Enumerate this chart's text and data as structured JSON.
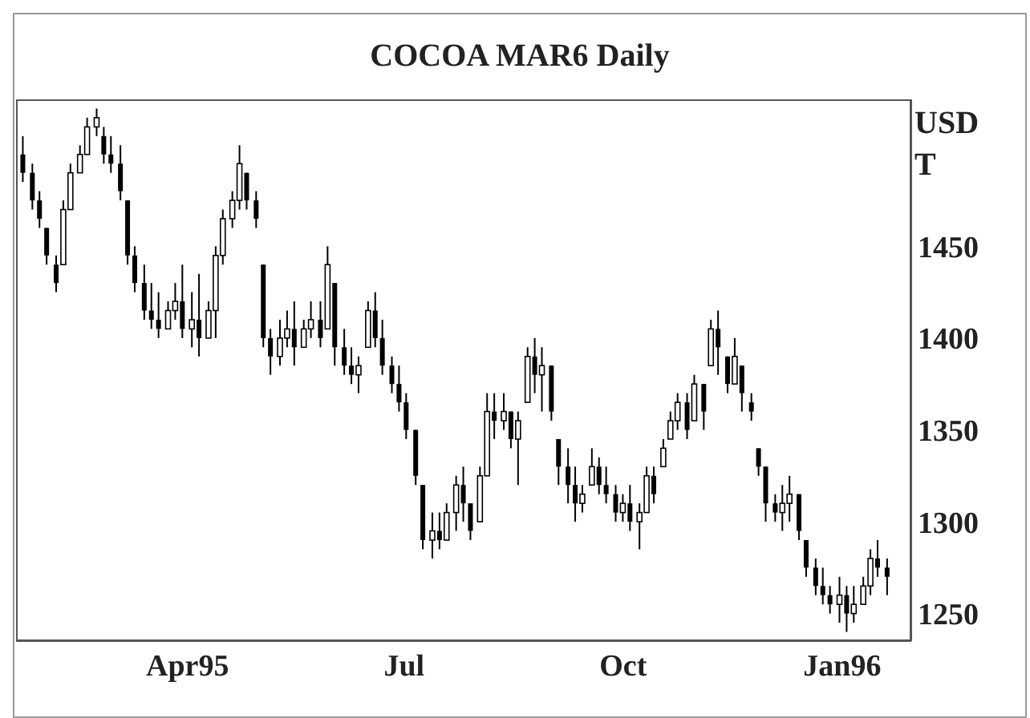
{
  "chart_data": {
    "type": "candlestick",
    "title": "COCOA MAR6 Daily",
    "ylabel": "USD T",
    "x": [
      "1995-01-22",
      "1995-01-26",
      "1995-01-29",
      "1995-02-01",
      "1995-02-05",
      "1995-02-08",
      "1995-02-11",
      "1995-02-15",
      "1995-02-18",
      "1995-02-22",
      "1995-02-25",
      "1995-02-28",
      "1995-03-04",
      "1995-03-07",
      "1995-03-10",
      "1995-03-14",
      "1995-03-17",
      "1995-03-20",
      "1995-03-24",
      "1995-03-27",
      "1995-03-30",
      "1995-04-03",
      "1995-04-06",
      "1995-04-10",
      "1995-04-13",
      "1995-04-16",
      "1995-04-20",
      "1995-04-23",
      "1995-04-26",
      "1995-04-30",
      "1995-05-03",
      "1995-05-06",
      "1995-05-10",
      "1995-05-13",
      "1995-05-16",
      "1995-05-20",
      "1995-05-23",
      "1995-05-27",
      "1995-05-30",
      "1995-06-02",
      "1995-06-06",
      "1995-06-09",
      "1995-06-12",
      "1995-06-16",
      "1995-06-19",
      "1995-06-22",
      "1995-06-26",
      "1995-06-29",
      "1995-07-02",
      "1995-07-06",
      "1995-07-09",
      "1995-07-13",
      "1995-07-16",
      "1995-07-19",
      "1995-07-23",
      "1995-07-26",
      "1995-07-29",
      "1995-08-02",
      "1995-08-05",
      "1995-08-08",
      "1995-08-12",
      "1995-08-15",
      "1995-08-18",
      "1995-08-22",
      "1995-08-25",
      "1995-08-28",
      "1995-09-01",
      "1995-09-04",
      "1995-09-08",
      "1995-09-11",
      "1995-09-14",
      "1995-09-18",
      "1995-09-21",
      "1995-09-24",
      "1995-09-28",
      "1995-10-01",
      "1995-10-04",
      "1995-10-08",
      "1995-10-11",
      "1995-10-14",
      "1995-10-18",
      "1995-10-21",
      "1995-10-24",
      "1995-10-28",
      "1995-10-31",
      "1995-11-04",
      "1995-11-07",
      "1995-11-10",
      "1995-11-14",
      "1995-11-17",
      "1995-11-20",
      "1995-11-24",
      "1995-11-27",
      "1995-11-30",
      "1995-12-04",
      "1995-12-07",
      "1995-12-10",
      "1995-12-14",
      "1995-12-17",
      "1995-12-21",
      "1995-12-24",
      "1995-12-27",
      "1995-12-31",
      "1996-01-03",
      "1996-01-06",
      "1996-01-10",
      "1996-01-13",
      "1996-01-16",
      "1996-01-20"
    ],
    "ohlc": [
      [
        1500,
        1510,
        1485,
        1490
      ],
      [
        1490,
        1495,
        1470,
        1475
      ],
      [
        1475,
        1480,
        1460,
        1465
      ],
      [
        1460,
        1460,
        1440,
        1445
      ],
      [
        1440,
        1445,
        1425,
        1430
      ],
      [
        1440,
        1475,
        1440,
        1470
      ],
      [
        1470,
        1495,
        1470,
        1490
      ],
      [
        1490,
        1505,
        1490,
        1500
      ],
      [
        1500,
        1520,
        1500,
        1515
      ],
      [
        1515,
        1525,
        1510,
        1520
      ],
      [
        1510,
        1515,
        1495,
        1500
      ],
      [
        1500,
        1510,
        1490,
        1495
      ],
      [
        1495,
        1505,
        1475,
        1480
      ],
      [
        1475,
        1475,
        1440,
        1445
      ],
      [
        1445,
        1450,
        1425,
        1430
      ],
      [
        1430,
        1440,
        1410,
        1415
      ],
      [
        1415,
        1430,
        1405,
        1410
      ],
      [
        1410,
        1425,
        1400,
        1405
      ],
      [
        1405,
        1420,
        1405,
        1415
      ],
      [
        1415,
        1430,
        1410,
        1420
      ],
      [
        1420,
        1440,
        1400,
        1405
      ],
      [
        1405,
        1425,
        1395,
        1410
      ],
      [
        1410,
        1435,
        1390,
        1400
      ],
      [
        1400,
        1420,
        1400,
        1415
      ],
      [
        1415,
        1450,
        1400,
        1445
      ],
      [
        1445,
        1470,
        1440,
        1465
      ],
      [
        1465,
        1480,
        1460,
        1475
      ],
      [
        1475,
        1505,
        1470,
        1495
      ],
      [
        1490,
        1490,
        1470,
        1475
      ],
      [
        1475,
        1480,
        1460,
        1465
      ],
      [
        1440,
        1440,
        1395,
        1400
      ],
      [
        1400,
        1405,
        1380,
        1390
      ],
      [
        1390,
        1410,
        1385,
        1400
      ],
      [
        1400,
        1415,
        1395,
        1405
      ],
      [
        1405,
        1420,
        1385,
        1395
      ],
      [
        1395,
        1410,
        1395,
        1405
      ],
      [
        1405,
        1420,
        1400,
        1410
      ],
      [
        1410,
        1420,
        1395,
        1400
      ],
      [
        1405,
        1450,
        1405,
        1440
      ],
      [
        1430,
        1430,
        1385,
        1395
      ],
      [
        1395,
        1405,
        1380,
        1385
      ],
      [
        1385,
        1395,
        1375,
        1380
      ],
      [
        1380,
        1390,
        1370,
        1385
      ],
      [
        1395,
        1420,
        1395,
        1415
      ],
      [
        1415,
        1425,
        1395,
        1400
      ],
      [
        1400,
        1410,
        1380,
        1385
      ],
      [
        1385,
        1390,
        1370,
        1375
      ],
      [
        1375,
        1385,
        1360,
        1365
      ],
      [
        1365,
        1370,
        1345,
        1350
      ],
      [
        1350,
        1350,
        1320,
        1325
      ],
      [
        1320,
        1320,
        1285,
        1290
      ],
      [
        1290,
        1305,
        1280,
        1295
      ],
      [
        1295,
        1305,
        1285,
        1290
      ],
      [
        1290,
        1310,
        1290,
        1305
      ],
      [
        1305,
        1325,
        1295,
        1320
      ],
      [
        1320,
        1330,
        1300,
        1310
      ],
      [
        1310,
        1310,
        1290,
        1295
      ],
      [
        1300,
        1330,
        1300,
        1325
      ],
      [
        1325,
        1370,
        1325,
        1360
      ],
      [
        1360,
        1370,
        1345,
        1355
      ],
      [
        1355,
        1370,
        1350,
        1360
      ],
      [
        1360,
        1360,
        1340,
        1345
      ],
      [
        1345,
        1360,
        1320,
        1355
      ],
      [
        1365,
        1395,
        1365,
        1390
      ],
      [
        1390,
        1400,
        1370,
        1380
      ],
      [
        1380,
        1395,
        1360,
        1385
      ],
      [
        1385,
        1385,
        1355,
        1360
      ],
      [
        1345,
        1345,
        1320,
        1330
      ],
      [
        1330,
        1340,
        1310,
        1320
      ],
      [
        1320,
        1330,
        1300,
        1310
      ],
      [
        1310,
        1320,
        1305,
        1315
      ],
      [
        1320,
        1340,
        1320,
        1330
      ],
      [
        1330,
        1335,
        1315,
        1320
      ],
      [
        1320,
        1330,
        1310,
        1315
      ],
      [
        1315,
        1320,
        1300,
        1305
      ],
      [
        1305,
        1315,
        1300,
        1310
      ],
      [
        1310,
        1320,
        1295,
        1300
      ],
      [
        1300,
        1310,
        1285,
        1305
      ],
      [
        1305,
        1330,
        1305,
        1325
      ],
      [
        1325,
        1330,
        1310,
        1315
      ],
      [
        1330,
        1345,
        1330,
        1340
      ],
      [
        1345,
        1360,
        1345,
        1355
      ],
      [
        1355,
        1370,
        1350,
        1365
      ],
      [
        1365,
        1370,
        1345,
        1350
      ],
      [
        1355,
        1380,
        1355,
        1375
      ],
      [
        1375,
        1375,
        1350,
        1360
      ],
      [
        1385,
        1410,
        1385,
        1405
      ],
      [
        1405,
        1415,
        1380,
        1395
      ],
      [
        1390,
        1390,
        1370,
        1375
      ],
      [
        1375,
        1400,
        1375,
        1390
      ],
      [
        1385,
        1385,
        1360,
        1370
      ],
      [
        1365,
        1370,
        1355,
        1360
      ],
      [
        1340,
        1340,
        1325,
        1330
      ],
      [
        1330,
        1330,
        1300,
        1310
      ],
      [
        1310,
        1315,
        1300,
        1305
      ],
      [
        1305,
        1320,
        1295,
        1310
      ],
      [
        1310,
        1325,
        1300,
        1315
      ],
      [
        1315,
        1315,
        1290,
        1295
      ],
      [
        1290,
        1290,
        1270,
        1275
      ],
      [
        1275,
        1280,
        1260,
        1265
      ],
      [
        1265,
        1275,
        1255,
        1260
      ],
      [
        1260,
        1265,
        1250,
        1255
      ],
      [
        1255,
        1270,
        1245,
        1260
      ],
      [
        1260,
        1265,
        1240,
        1250
      ],
      [
        1250,
        1265,
        1245,
        1255
      ],
      [
        1255,
        1270,
        1255,
        1265
      ],
      [
        1265,
        1285,
        1260,
        1280
      ],
      [
        1280,
        1290,
        1270,
        1275
      ],
      [
        1275,
        1280,
        1260,
        1270
      ]
    ],
    "color": "#000000",
    "xlim": [
      "1995-01-19",
      "1996-01-30"
    ],
    "xticks": [
      {
        "value": "1995-04-01",
        "label": "Apr95"
      },
      {
        "value": "1995-07-01",
        "label": "Jul"
      },
      {
        "value": "1995-10-01",
        "label": "Oct"
      },
      {
        "value": "1996-01-01",
        "label": "Jan96"
      }
    ],
    "ylim": [
      1235,
      1530
    ],
    "yticks": [
      1250,
      1300,
      1350,
      1400,
      1450
    ],
    "grid": false,
    "legend": false
  }
}
